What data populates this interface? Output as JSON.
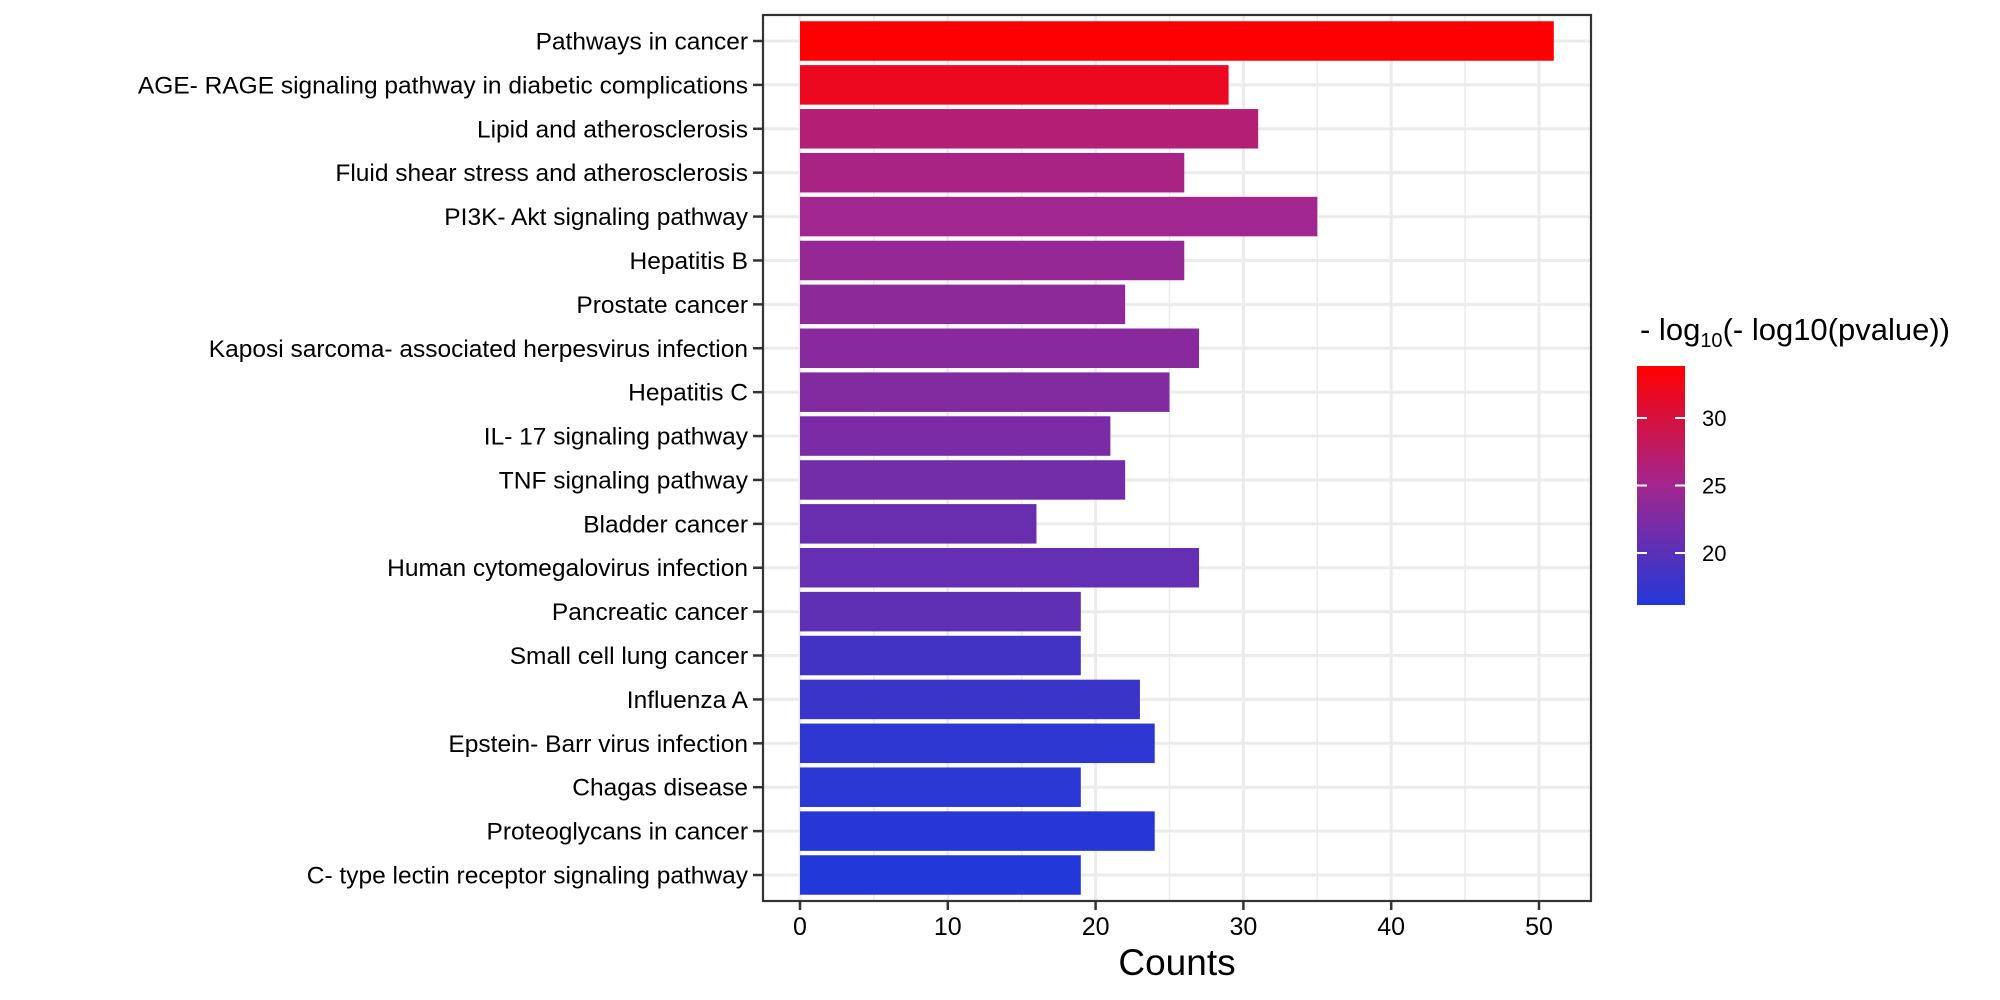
{
  "chart_data": {
    "type": "bar",
    "orientation": "horizontal",
    "title": "",
    "xlabel": "Counts",
    "ylabel": "",
    "xlim": [
      0,
      53.5
    ],
    "xticks": [
      0,
      10,
      20,
      30,
      40,
      50
    ],
    "grid": true,
    "categories": [
      "Pathways in cancer",
      "AGE- RAGE signaling pathway in diabetic complications",
      "Lipid and atherosclerosis",
      "Fluid shear stress and atherosclerosis",
      "PI3K- Akt signaling pathway",
      "Hepatitis B",
      "Prostate cancer",
      "Kaposi sarcoma- associated herpesvirus infection",
      "Hepatitis C",
      "IL- 17 signaling pathway",
      "TNF signaling pathway",
      "Bladder cancer",
      "Human cytomegalovirus infection",
      "Pancreatic cancer",
      "Small cell lung cancer",
      "Influenza A",
      "Epstein- Barr virus infection",
      "Chagas disease",
      "Proteoglycans in cancer",
      "C- type lectin receptor signaling pathway"
    ],
    "values": [
      51,
      29,
      31,
      26,
      35,
      26,
      22,
      27,
      25,
      21,
      22,
      16,
      27,
      19,
      19,
      23,
      24,
      19,
      24,
      19
    ],
    "color_values": [
      33.8,
      32.0,
      26.6,
      25.6,
      24.9,
      24.2,
      23.6,
      23.2,
      22.8,
      22.3,
      21.8,
      21.0,
      20.7,
      20.4,
      18.4,
      17.9,
      17.0,
      16.7,
      16.5,
      16.2
    ],
    "legend": {
      "title_prefix": "- log",
      "title_subscript": "10",
      "title_suffix": "(- log10(pvalue))",
      "position": "right",
      "range": [
        16.15,
        33.85
      ],
      "ticks": [
        20,
        25,
        30
      ],
      "tick_labels": [
        "20",
        "25",
        "30"
      ],
      "low_color": "#2238d8",
      "mid_color": "#a2268e",
      "high_color": "#ff0000"
    }
  }
}
